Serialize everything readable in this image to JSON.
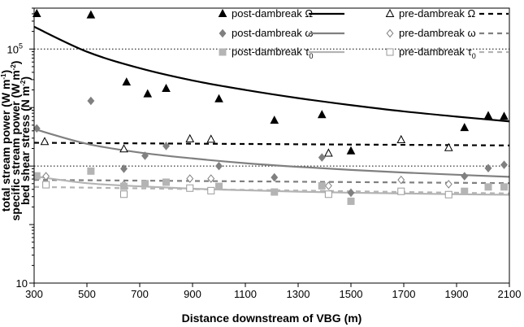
{
  "chart_data": {
    "type": "scatter",
    "title": "",
    "xlabel": "Distance downstream of VBG (m)",
    "ylabel_lines": [
      [
        "total stream power (W m",
        "-1",
        ")"
      ],
      [
        "specific stream power (W m",
        "-2",
        ")"
      ],
      [
        "bed shear stress (N m",
        "-2",
        ")"
      ]
    ],
    "x_ticks": [
      300,
      500,
      700,
      900,
      1100,
      1300,
      1500,
      1700,
      1900,
      2100
    ],
    "y_ticks": [
      {
        "value": 10,
        "label": "10"
      },
      {
        "value": 100000,
        "label": "10",
        "sup": "5"
      }
    ],
    "xlim": [
      300,
      2100
    ],
    "ylim": [
      10,
      500000
    ],
    "yscale": "log",
    "reference_lines": [
      100000,
      1000
    ],
    "legend_position": "top-right",
    "series": [
      {
        "name": "post-dambreak Ω",
        "marker": "triangle-filled",
        "color": "#000000",
        "points": [
          [
            310,
            400000
          ],
          [
            515,
            380000
          ],
          [
            650,
            27000
          ],
          [
            730,
            17000
          ],
          [
            800,
            21000
          ],
          [
            1000,
            14000
          ],
          [
            1210,
            6000
          ],
          [
            1390,
            7500
          ],
          [
            1500,
            1800
          ],
          [
            1930,
            4500
          ],
          [
            2020,
            7200
          ],
          [
            2080,
            7000
          ]
        ],
        "fit": [
          [
            300,
            240000
          ],
          [
            500,
            90000
          ],
          [
            700,
            47000
          ],
          [
            900,
            29000
          ],
          [
            1100,
            20000
          ],
          [
            1300,
            14500
          ],
          [
            1500,
            11000
          ],
          [
            1700,
            8600
          ],
          [
            1900,
            7000
          ],
          [
            2100,
            5800
          ]
        ],
        "fit_line": {
          "color": "#000000",
          "style": "solid"
        }
      },
      {
        "name": "pre-dambreak Ω",
        "marker": "triangle-open",
        "color": "#000000",
        "points": [
          [
            340,
            2600
          ],
          [
            640,
            1950
          ],
          [
            890,
            2900
          ],
          [
            970,
            2850
          ],
          [
            1415,
            1650
          ],
          [
            1690,
            2800
          ],
          [
            1870,
            2050
          ]
        ],
        "fit": [
          [
            300,
            2500
          ],
          [
            2100,
            2250
          ]
        ],
        "fit_line": {
          "color": "#000000",
          "style": "dashed"
        }
      },
      {
        "name": "post-dambreak ω",
        "marker": "diamond-filled",
        "color": "#808080",
        "points": [
          [
            310,
            4400
          ],
          [
            515,
            13000
          ],
          [
            640,
            900
          ],
          [
            720,
            1500
          ],
          [
            800,
            2200
          ],
          [
            1000,
            1000
          ],
          [
            1210,
            640
          ],
          [
            1390,
            1400
          ],
          [
            1500,
            350
          ],
          [
            1930,
            670
          ],
          [
            2020,
            920
          ],
          [
            2080,
            1050
          ]
        ],
        "fit": [
          [
            300,
            4300
          ],
          [
            500,
            2400
          ],
          [
            700,
            1700
          ],
          [
            900,
            1350
          ],
          [
            1100,
            1120
          ],
          [
            1300,
            970
          ],
          [
            1500,
            860
          ],
          [
            1700,
            775
          ],
          [
            1900,
            710
          ],
          [
            2100,
            655
          ]
        ],
        "fit_line": {
          "color": "#808080",
          "style": "solid"
        }
      },
      {
        "name": "pre-dambreak ω",
        "marker": "diamond-open",
        "color": "#808080",
        "points": [
          [
            345,
            670
          ],
          [
            640,
            480
          ],
          [
            890,
            610
          ],
          [
            970,
            610
          ],
          [
            1415,
            460
          ],
          [
            1690,
            580
          ],
          [
            1870,
            490
          ]
        ],
        "fit": [
          [
            300,
            580
          ],
          [
            2100,
            510
          ]
        ],
        "fit_line": {
          "color": "#808080",
          "style": "dashed"
        }
      },
      {
        "name": "post-dambreak τ",
        "name_sub": "0",
        "marker": "square-filled",
        "color": "#b4b4b4",
        "points": [
          [
            310,
            680
          ],
          [
            515,
            820
          ],
          [
            640,
            450
          ],
          [
            720,
            500
          ],
          [
            800,
            530
          ],
          [
            1000,
            450
          ],
          [
            1210,
            360
          ],
          [
            1390,
            460
          ],
          [
            1500,
            250
          ],
          [
            1930,
            370
          ],
          [
            2020,
            440
          ],
          [
            2080,
            440
          ]
        ],
        "fit": [
          [
            300,
            670
          ],
          [
            500,
            510
          ],
          [
            700,
            450
          ],
          [
            900,
            410
          ],
          [
            1100,
            385
          ],
          [
            1300,
            365
          ],
          [
            1500,
            350
          ],
          [
            1700,
            340
          ],
          [
            1900,
            330
          ],
          [
            2100,
            323
          ]
        ],
        "fit_line": {
          "color": "#b4b4b4",
          "style": "solid"
        }
      },
      {
        "name": "pre-dambreak τ",
        "name_sub": "0",
        "marker": "square-open",
        "color": "#b4b4b4",
        "points": [
          [
            345,
            480
          ],
          [
            640,
            330
          ],
          [
            890,
            420
          ],
          [
            970,
            380
          ],
          [
            1415,
            330
          ],
          [
            1690,
            370
          ],
          [
            1870,
            325
          ]
        ],
        "fit": [
          [
            300,
            440
          ],
          [
            2100,
            340
          ]
        ],
        "fit_line": {
          "color": "#b4b4b4",
          "style": "dashed"
        }
      }
    ]
  }
}
